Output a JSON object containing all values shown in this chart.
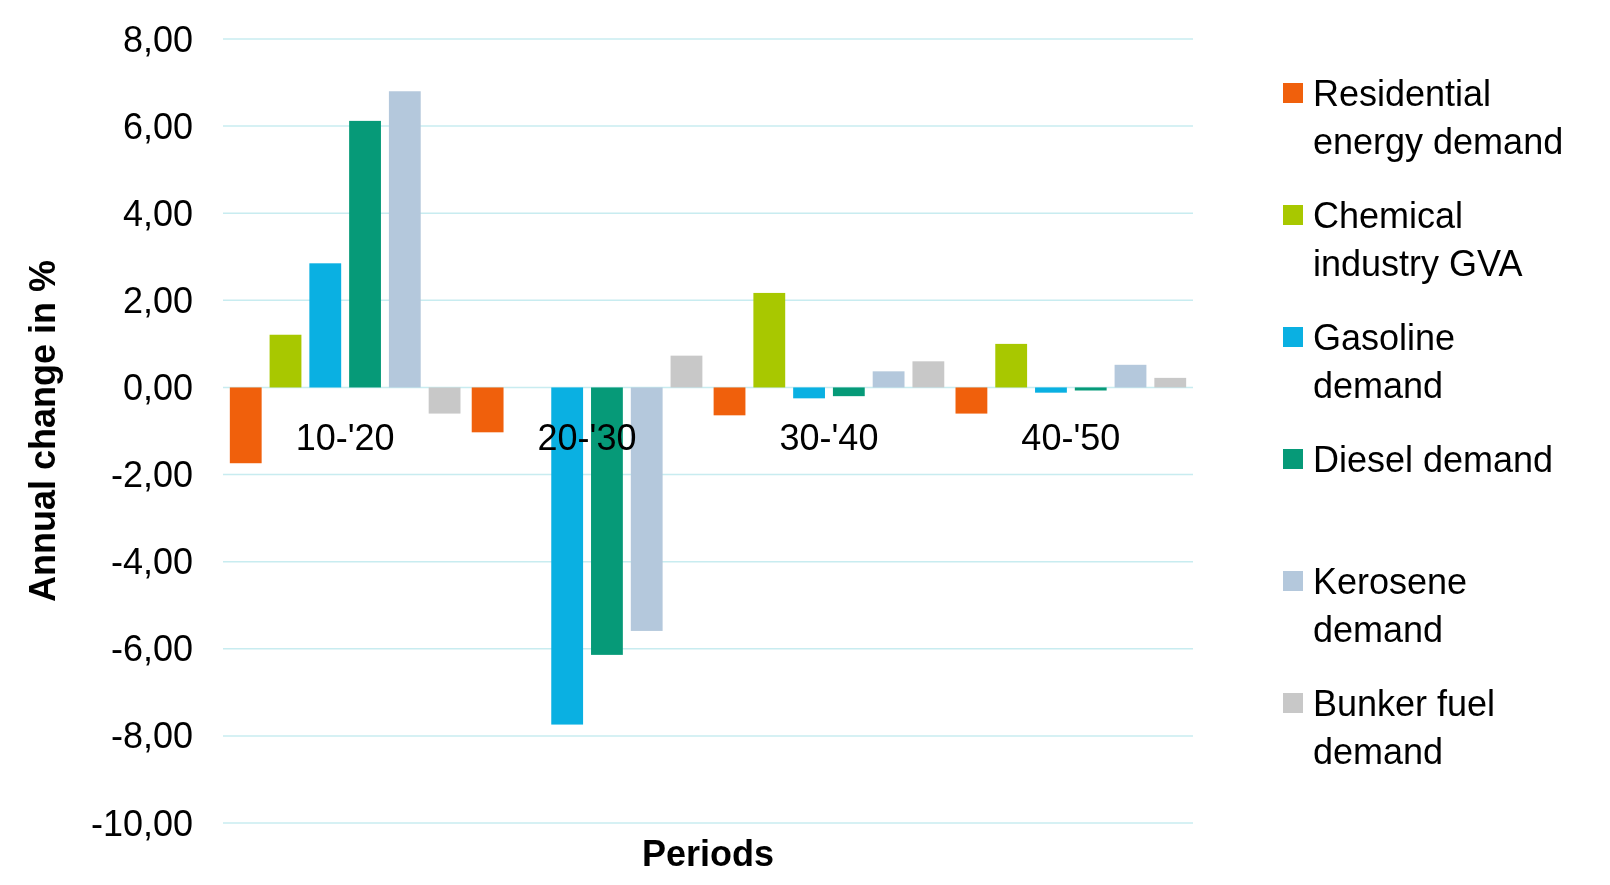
{
  "chart_data": {
    "type": "bar",
    "xlabel": "Periods",
    "ylabel": "Annual change in %",
    "categories": [
      "10-'20",
      "20-'30",
      "30-'40",
      "40-'50"
    ],
    "series": [
      {
        "name": "Residential energy demand",
        "color": "#f0600c",
        "values": [
          -1.74,
          -1.03,
          -0.64,
          -0.6
        ]
      },
      {
        "name": "Chemical industry GVA",
        "color": "#a8c800",
        "values": [
          1.21,
          0,
          2.17,
          1.0
        ]
      },
      {
        "name": "Gasoline demand",
        "color": "#0ab0e2",
        "values": [
          2.85,
          -7.74,
          -0.25,
          -0.12
        ]
      },
      {
        "name": "Diesel demand",
        "color": "#069a78",
        "values": [
          6.12,
          -6.14,
          -0.2,
          -0.07
        ]
      },
      {
        "name": "Kerosene demand",
        "color": "#b4c8dc",
        "values": [
          6.8,
          -5.59,
          0.37,
          0.52
        ]
      },
      {
        "name": "Bunker fuel demand",
        "color": "#c8c8c8",
        "values": [
          -0.6,
          0.73,
          0.6,
          0.22
        ]
      }
    ],
    "ylim": [
      -10,
      8
    ],
    "yticks": [
      {
        "value": -10,
        "label": "-10,00"
      },
      {
        "value": -8,
        "label": "-8,00"
      },
      {
        "value": -6,
        "label": "-6,00"
      },
      {
        "value": -4,
        "label": "-4,00"
      },
      {
        "value": -2,
        "label": "-2,00"
      },
      {
        "value": 0,
        "label": "0,00"
      },
      {
        "value": 2,
        "label": "2,00"
      },
      {
        "value": 4,
        "label": "4,00"
      },
      {
        "value": 6,
        "label": "6,00"
      },
      {
        "value": 8,
        "label": "8,00"
      }
    ],
    "grid": true,
    "legend": "right"
  }
}
